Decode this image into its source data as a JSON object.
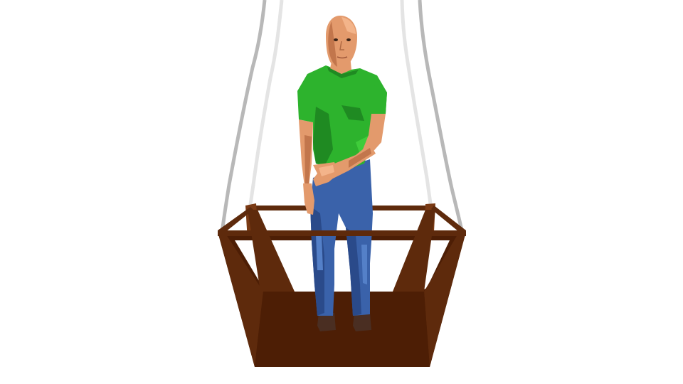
{
  "scene": {
    "background": "#ffffff",
    "colors": {
      "rope": "#b8b8b8",
      "rope_highlight": "#e4e4e4",
      "rope_shadow": "#8c8c8c",
      "basket_dark": "#4d1e05",
      "basket_mid": "#5e2a0c",
      "basket_light": "#7a3a14",
      "shirt": "#2db32d",
      "shirt_shadow": "#1f8a22",
      "shirt_highlight": "#3fcc3a",
      "jeans": "#3a62aa",
      "jeans_shadow": "#2a4a8a",
      "jeans_highlight": "#5480c8",
      "skin": "#e39a6c",
      "skin_shadow": "#c2764c",
      "skin_highlight": "#f3b48a",
      "shoes": "#4a2e22"
    },
    "objects": [
      "rope",
      "basket",
      "man",
      "green-shirt",
      "blue-jeans",
      "shoes"
    ]
  }
}
